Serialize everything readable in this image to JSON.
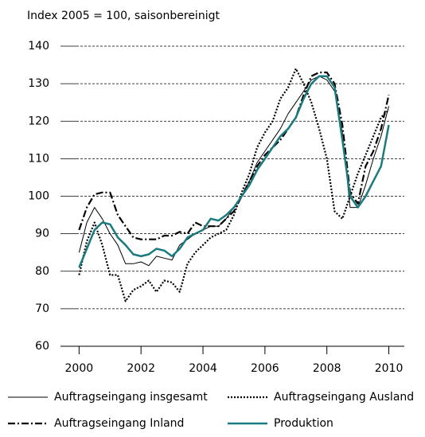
{
  "chart_data": {
    "type": "line",
    "subtitle": "Index 2005 = 100, saisonbereinigt",
    "x": [
      2000,
      2000.25,
      2000.5,
      2000.75,
      2001,
      2001.25,
      2001.5,
      2001.75,
      2002,
      2002.25,
      2002.5,
      2002.75,
      2003,
      2003.25,
      2003.5,
      2003.75,
      2004,
      2004.25,
      2004.5,
      2004.75,
      2005,
      2005.25,
      2005.5,
      2005.75,
      2006,
      2006.25,
      2006.5,
      2006.75,
      2007,
      2007.25,
      2007.5,
      2007.75,
      2008,
      2008.25,
      2008.5,
      2008.75,
      2009,
      2009.25,
      2009.5,
      2009.75,
      2010
    ],
    "series": [
      {
        "name": "Auftragseingang insgesamt",
        "color": "#000000",
        "style": "solid",
        "width": 1,
        "values": [
          85,
          93,
          97,
          94,
          90,
          87,
          82,
          82,
          82.5,
          81.5,
          84,
          83.5,
          83,
          87,
          88.5,
          90,
          91,
          92,
          92,
          94,
          97,
          100,
          104,
          109,
          112,
          115,
          118,
          122,
          125,
          128,
          131,
          132,
          131,
          128,
          117,
          97,
          97,
          103,
          110,
          116,
          124
        ]
      },
      {
        "name": "Auftragseingang Ausland",
        "color": "#000000",
        "style": "dotted",
        "width": 2.2,
        "values": [
          79,
          88,
          93,
          87,
          79,
          79,
          72,
          75,
          76,
          77.5,
          74.5,
          77.5,
          77,
          74.5,
          82,
          85,
          87,
          89,
          90,
          91,
          95,
          101,
          106,
          113,
          117,
          120,
          126,
          129,
          134,
          130,
          125,
          118,
          110,
          96,
          94,
          100,
          106,
          111,
          116,
          121,
          123
        ]
      },
      {
        "name": "Auftragseingang Inland",
        "color": "#000000",
        "style": "dashdot",
        "width": 2.2,
        "values": [
          91,
          97,
          100.5,
          101,
          101,
          95,
          92,
          89,
          88.5,
          88.5,
          88.5,
          89.5,
          89.5,
          90.5,
          90,
          93,
          92,
          92,
          92,
          94,
          96,
          100,
          104,
          108,
          111,
          113,
          115,
          118,
          121,
          127,
          132,
          133,
          133,
          130,
          119,
          101,
          98,
          108,
          112,
          118,
          127
        ]
      },
      {
        "name": "Produktion",
        "color": "#1a7a80",
        "style": "solid",
        "width": 2.5,
        "values": [
          81,
          86,
          91,
          93,
          92.5,
          89,
          87,
          84.5,
          84,
          84.5,
          86,
          85.5,
          84,
          86,
          89,
          90,
          91,
          94,
          93.5,
          95,
          97,
          100,
          103,
          107,
          110,
          113,
          116,
          118,
          121,
          126,
          130,
          132,
          132,
          129,
          115,
          100,
          97,
          100,
          104,
          108,
          119
        ]
      }
    ],
    "xlim": [
      1999.4,
      2010.5
    ],
    "xticks": [
      2000,
      2002,
      2004,
      2006,
      2008,
      2010
    ],
    "ylim": [
      60,
      140
    ],
    "yticks": [
      60,
      70,
      80,
      90,
      100,
      110,
      120,
      130,
      140
    ],
    "grid": true
  }
}
